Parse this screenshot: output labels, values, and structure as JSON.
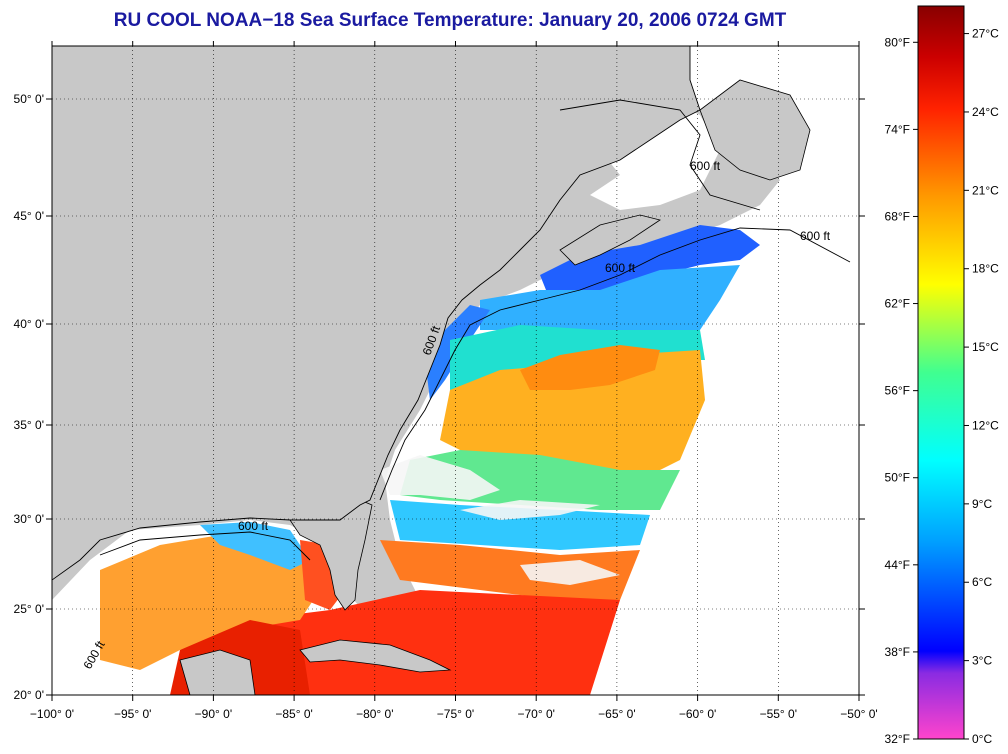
{
  "title": "RU COOL  NOAA−18  Sea Surface Temperature:  January 20, 2006 0724 GMT",
  "map": {
    "lon_ticks": [
      "−100° 0'",
      "−95° 0'",
      "−90° 0'",
      "−85° 0'",
      "−80° 0'",
      "−75° 0'",
      "−70° 0'",
      "−65° 0'",
      "−60° 0'",
      "−55° 0'",
      "−50° 0'"
    ],
    "lat_ticks": [
      "20° 0'",
      "25° 0'",
      "30° 0'",
      "35° 0'",
      "40° 0'",
      "45° 0'",
      "50° 0'"
    ],
    "contour_labels": [
      "600 ft",
      "600 ft",
      "600 ft",
      "600 ft",
      "600 ft",
      "600 ft"
    ],
    "colors": {
      "land": "#c8c8c8",
      "water": "#ffffff",
      "coast": "#000000"
    }
  },
  "colorbar": {
    "fahrenheit_labels": [
      "80°F",
      "74°F",
      "68°F",
      "62°F",
      "56°F",
      "50°F",
      "44°F",
      "38°F",
      "32°F"
    ],
    "celsius_labels": [
      "27°C",
      "24°C",
      "21°C",
      "18°C",
      "15°C",
      "12°C",
      "9°C",
      "6°C",
      "3°C",
      "0°C"
    ],
    "gradient": [
      "#ff44cc",
      "#8a2be2",
      "#0000ff",
      "#00a0ff",
      "#00ffff",
      "#40ff90",
      "#ffff00",
      "#ff9900",
      "#ff2200",
      "#cc0000",
      "#880000"
    ]
  }
}
